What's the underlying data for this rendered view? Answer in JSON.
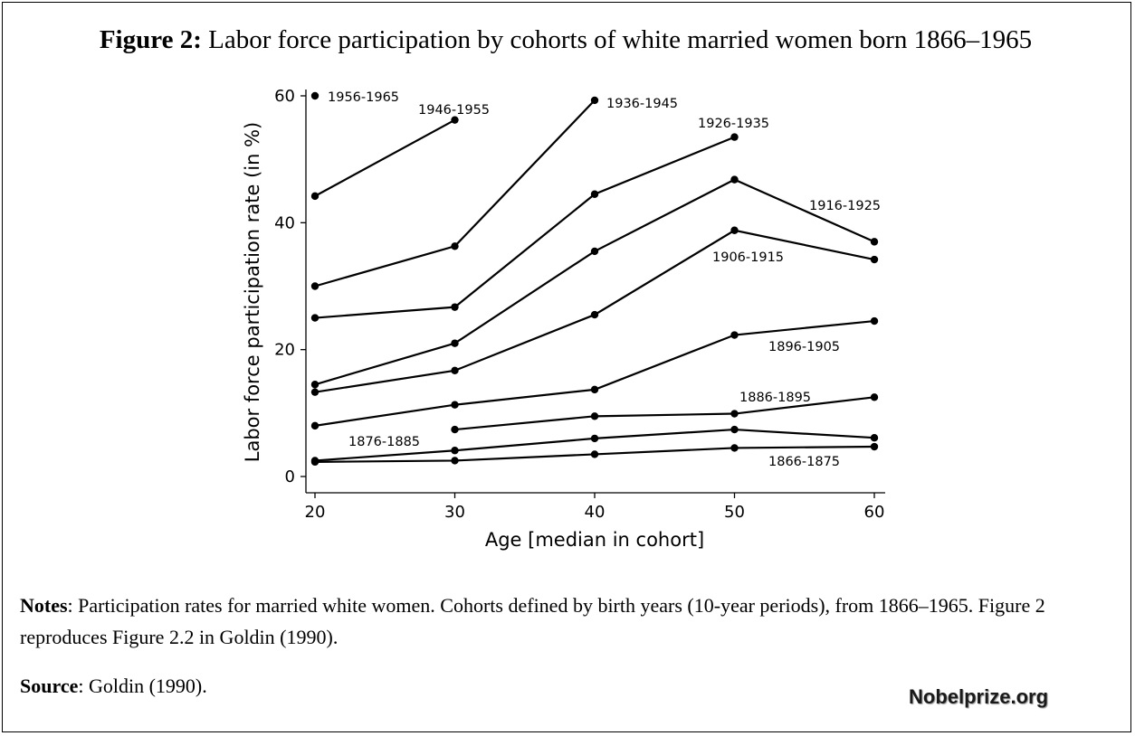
{
  "figure": {
    "title_prefix": "Figure 2:",
    "title_text": " Labor force participation by cohorts of white married women born 1866–1965"
  },
  "notes": {
    "label": "Notes",
    "text": ": Participation rates for married white women. Cohorts defined by birth years (10-year periods), from 1866–1965. Figure 2 reproduces Figure 2.2 in Goldin (1990)."
  },
  "source": {
    "label": "Source",
    "text": ": Goldin (1990)."
  },
  "brand": "Nobelprize.org",
  "chart_data": {
    "type": "line",
    "title": "",
    "xlabel": "Age [median in cohort]",
    "ylabel": "Labor force participation rate (in %)",
    "xlim": [
      20,
      60
    ],
    "ylim": [
      0,
      60
    ],
    "xticks": [
      20,
      30,
      40,
      50,
      60
    ],
    "yticks": [
      0,
      20,
      40,
      60
    ],
    "grid": false,
    "series": [
      {
        "name": "1866-1875",
        "x": [
          20,
          30,
          40,
          50,
          60
        ],
        "y": [
          2.3,
          2.5,
          3.5,
          4.5,
          4.7
        ]
      },
      {
        "name": "1876-1885",
        "x": [
          20,
          30,
          40,
          50,
          60
        ],
        "y": [
          2.5,
          4.1,
          6,
          7.4,
          6.1
        ]
      },
      {
        "name": "1886-1895",
        "x": [
          30,
          40,
          50,
          60
        ],
        "y": [
          7.4,
          9.5,
          9.9,
          12.5
        ]
      },
      {
        "name": "1896-1905",
        "x": [
          20,
          30,
          40,
          50,
          60
        ],
        "y": [
          8,
          11.3,
          13.7,
          22.3,
          24.5
        ]
      },
      {
        "name": "1906-1915",
        "x": [
          20,
          30,
          40,
          50,
          60
        ],
        "y": [
          13.3,
          16.7,
          25.5,
          38.8,
          34.2
        ]
      },
      {
        "name": "1916-1925",
        "x": [
          20,
          30,
          40,
          50,
          60
        ],
        "y": [
          14.5,
          21,
          35.5,
          46.8,
          37
        ]
      },
      {
        "name": "1926-1935",
        "x": [
          20,
          30,
          40,
          50
        ],
        "y": [
          25,
          26.7,
          44.5,
          53.5
        ]
      },
      {
        "name": "1936-1945",
        "x": [
          20,
          30,
          40
        ],
        "y": [
          30,
          36.3,
          59.3
        ]
      },
      {
        "name": "1946-1955",
        "x": [
          20,
          30
        ],
        "y": [
          44.2,
          56.2
        ]
      },
      {
        "name": "1956-1965",
        "x": [
          20
        ],
        "y": [
          60
        ]
      }
    ]
  }
}
